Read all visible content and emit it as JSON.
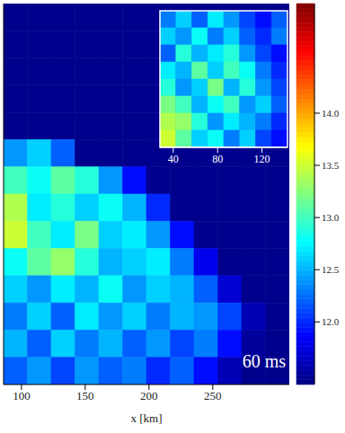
{
  "chart_data": [
    {
      "type": "heatmap",
      "xlabel": "x [km]",
      "annotation": "60 ms",
      "xlim": [
        86,
        310
      ],
      "xticks": [
        100,
        150,
        200,
        250
      ],
      "ylim": [
        0,
        295
      ],
      "tick_labels": "x",
      "cells": [
        [
          11.45,
          11.45,
          11.45,
          11.45,
          11.45,
          11.45,
          11.45,
          11.45,
          11.45,
          11.45,
          11.45,
          11.45
        ],
        [
          11.45,
          11.45,
          11.45,
          11.45,
          11.45,
          11.45,
          11.45,
          11.45,
          11.45,
          11.45,
          11.45,
          11.45
        ],
        [
          11.45,
          11.45,
          11.45,
          11.45,
          11.45,
          11.45,
          11.45,
          11.45,
          11.45,
          11.45,
          11.45,
          11.45
        ],
        [
          11.45,
          11.45,
          11.45,
          11.45,
          11.45,
          11.45,
          11.45,
          11.45,
          11.45,
          11.45,
          11.45,
          11.45
        ],
        [
          11.45,
          11.45,
          11.45,
          11.45,
          11.45,
          11.45,
          11.45,
          11.45,
          11.45,
          11.45,
          11.45,
          11.45
        ],
        [
          12.4,
          12.6,
          12.2,
          11.45,
          11.45,
          11.45,
          11.45,
          11.45,
          11.45,
          11.45,
          11.45,
          11.45
        ],
        [
          13.0,
          12.8,
          13.1,
          12.9,
          12.4,
          11.9,
          11.45,
          11.45,
          11.45,
          11.45,
          11.45,
          11.45
        ],
        [
          13.4,
          12.7,
          12.9,
          12.6,
          12.8,
          12.5,
          12.0,
          11.45,
          11.45,
          11.45,
          11.45,
          11.45
        ],
        [
          13.5,
          13.0,
          12.7,
          13.2,
          12.6,
          12.7,
          12.4,
          11.9,
          11.45,
          11.45,
          11.45,
          11.45
        ],
        [
          12.8,
          13.1,
          13.3,
          12.9,
          12.5,
          12.6,
          12.7,
          12.3,
          11.8,
          11.45,
          11.45,
          11.45
        ],
        [
          12.6,
          12.4,
          12.7,
          12.5,
          12.8,
          12.4,
          12.6,
          12.5,
          12.2,
          11.7,
          11.45,
          11.45
        ],
        [
          12.3,
          12.6,
          12.2,
          12.7,
          12.4,
          12.6,
          12.3,
          12.5,
          12.4,
          12.1,
          11.6,
          11.45
        ],
        [
          12.5,
          12.2,
          12.6,
          12.3,
          12.5,
          12.2,
          12.4,
          12.1,
          12.3,
          11.9,
          11.5,
          11.45
        ],
        [
          12.2,
          12.4,
          12.1,
          12.4,
          12.2,
          12.3,
          12.0,
          12.2,
          11.9,
          11.6,
          11.45,
          11.45
        ]
      ],
      "colorbar": {
        "range": [
          11.4,
          15.05
        ],
        "ticks": [
          {
            "value": 12,
            "label": "12.0"
          },
          {
            "value": 12.5,
            "label": "12.5"
          },
          {
            "value": 13,
            "label": "13.0"
          },
          {
            "value": 13.5,
            "label": "13.5"
          },
          {
            "value": 14,
            "label": "14.0"
          }
        ]
      }
    },
    {
      "type": "heatmap",
      "xlim": [
        28,
        143
      ],
      "xticks": [
        40,
        80,
        120
      ],
      "ylim": [
        0,
        120
      ],
      "tick_labels": "x",
      "cells": [
        [
          12.3,
          12.6,
          12.2,
          12.7,
          12.4,
          12.1,
          11.9,
          12.2
        ],
        [
          12.6,
          12.4,
          12.8,
          12.3,
          12.6,
          12.2,
          12.0,
          12.3
        ],
        [
          12.2,
          12.9,
          12.5,
          12.7,
          12.9,
          12.4,
          12.1,
          11.9
        ],
        [
          12.7,
          12.5,
          13.1,
          12.6,
          13.0,
          12.8,
          12.3,
          12.0
        ],
        [
          12.9,
          12.4,
          12.6,
          13.2,
          12.5,
          12.9,
          12.4,
          12.1
        ],
        [
          13.2,
          13.0,
          12.5,
          12.8,
          13.0,
          12.4,
          12.6,
          12.2
        ],
        [
          13.4,
          13.3,
          12.9,
          12.4,
          12.7,
          12.5,
          12.3,
          12.0
        ],
        [
          13.5,
          13.1,
          12.6,
          12.8,
          12.3,
          12.6,
          12.1,
          11.9
        ]
      ]
    }
  ]
}
